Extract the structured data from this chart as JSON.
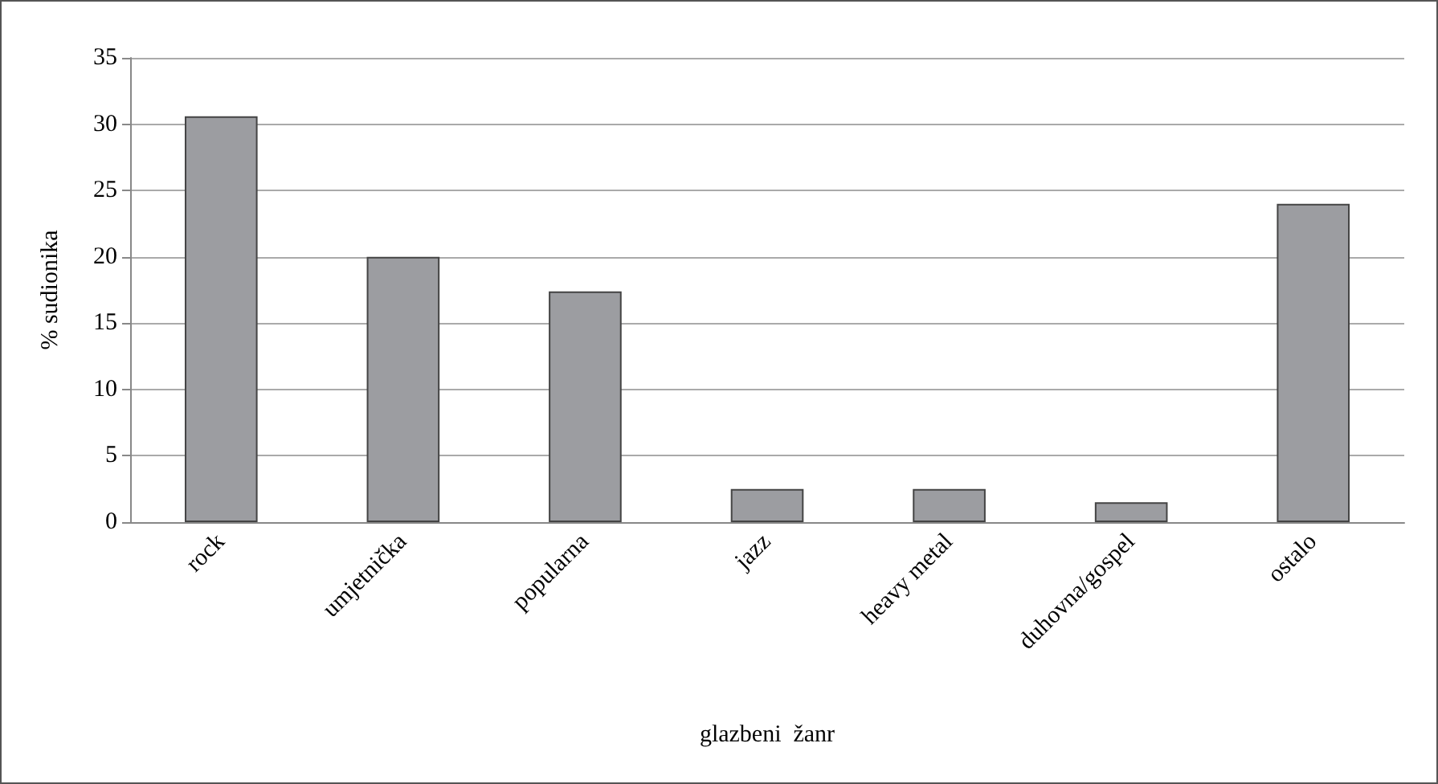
{
  "chart_data": {
    "type": "bar",
    "xlabel": "glazbeni  žanr",
    "ylabel": "% sudionika",
    "categories": [
      "rock",
      "umjetnička",
      "popularna",
      "jazz",
      "heavy metal",
      "duhovna/gospel",
      "ostalo"
    ],
    "values": [
      30.6,
      20.0,
      17.4,
      2.5,
      2.5,
      1.5,
      24.0
    ],
    "color": "#9c9da1",
    "ylim": [
      0,
      35
    ],
    "yticks": [
      0,
      5,
      10,
      15,
      20,
      25,
      30,
      35
    ],
    "grid": "y"
  }
}
